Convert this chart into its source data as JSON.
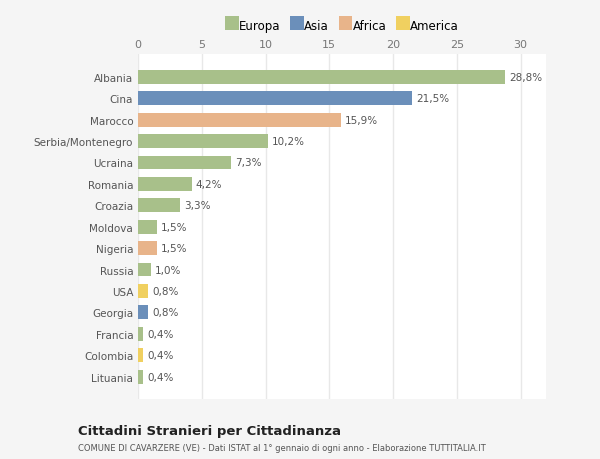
{
  "countries": [
    "Albania",
    "Cina",
    "Marocco",
    "Serbia/Montenegro",
    "Ucraina",
    "Romania",
    "Croazia",
    "Moldova",
    "Nigeria",
    "Russia",
    "USA",
    "Georgia",
    "Francia",
    "Colombia",
    "Lituania"
  ],
  "values": [
    28.8,
    21.5,
    15.9,
    10.2,
    7.3,
    4.2,
    3.3,
    1.5,
    1.5,
    1.0,
    0.8,
    0.8,
    0.4,
    0.4,
    0.4
  ],
  "labels": [
    "28,8%",
    "21,5%",
    "15,9%",
    "10,2%",
    "7,3%",
    "4,2%",
    "3,3%",
    "1,5%",
    "1,5%",
    "1,0%",
    "0,8%",
    "0,8%",
    "0,4%",
    "0,4%",
    "0,4%"
  ],
  "continents": [
    "Europa",
    "Asia",
    "Africa",
    "Europa",
    "Europa",
    "Europa",
    "Europa",
    "Europa",
    "Africa",
    "Europa",
    "America",
    "Asia",
    "Europa",
    "America",
    "Europa"
  ],
  "colors": {
    "Europa": "#a8c08a",
    "Asia": "#6b8fba",
    "Africa": "#e8b48a",
    "America": "#f0d060"
  },
  "legend_order": [
    "Europa",
    "Asia",
    "Africa",
    "America"
  ],
  "bg_color": "#f5f5f5",
  "plot_bg_color": "#ffffff",
  "grid_color": "#e8e8e8",
  "title": "Cittadini Stranieri per Cittadinanza",
  "subtitle": "COMUNE DI CAVARZERE (VE) - Dati ISTAT al 1° gennaio di ogni anno - Elaborazione TUTTITALIA.IT",
  "xlim": [
    0,
    32
  ],
  "xticks": [
    0,
    5,
    10,
    15,
    20,
    25,
    30
  ]
}
